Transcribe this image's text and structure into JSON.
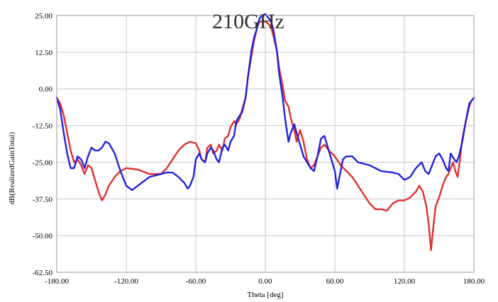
{
  "chart_data": {
    "type": "line",
    "title": "210GHz",
    "xlabel": "Theta [deg]",
    "ylabel": "dB(RealizedGainTotal)",
    "xlim": [
      -180,
      180
    ],
    "ylim": [
      -62.5,
      25
    ],
    "grid": true,
    "x_ticks": [
      "-180.00",
      "-120.00",
      "-60.00",
      "0.00",
      "60.00",
      "120.00",
      "180.00"
    ],
    "y_ticks": [
      "25.00",
      "12.50",
      "0.00",
      "-12.50",
      "-25.00",
      "-37.50",
      "-50.00",
      "-62.50"
    ],
    "colors": {
      "red_series": "#e03030",
      "blue_series": "#2222dd"
    },
    "series": [
      {
        "color": "#e03030",
        "x": [
          -180,
          -177,
          -174,
          -171,
          -168,
          -165,
          -162,
          -159,
          -156,
          -153,
          -150,
          -147,
          -144,
          -141,
          -138,
          -135,
          -130,
          -125,
          -120,
          -110,
          -100,
          -90,
          -85,
          -80,
          -75,
          -70,
          -65,
          -60,
          -57,
          -55,
          -52,
          -50,
          -47,
          -45,
          -42,
          -40,
          -37,
          -35,
          -32,
          -30,
          -27,
          -25,
          -22,
          -20,
          -17,
          -15,
          -12,
          -10,
          -7,
          -5,
          -3,
          0,
          3,
          5,
          7,
          10,
          12,
          15,
          17,
          20,
          22,
          25,
          27,
          30,
          33,
          36,
          39,
          42,
          45,
          48,
          51,
          55,
          60,
          65,
          70,
          75,
          80,
          85,
          90,
          95,
          100,
          105,
          110,
          115,
          120,
          125,
          130,
          133,
          136,
          139,
          141,
          143,
          145,
          147,
          150,
          153,
          156,
          158,
          160,
          162,
          164,
          166,
          168,
          170,
          173,
          176,
          178,
          180
        ],
        "y": [
          -3,
          -5,
          -9,
          -15,
          -21,
          -25,
          -24,
          -26,
          -29,
          -26,
          -27,
          -31,
          -35,
          -38,
          -36,
          -33,
          -30,
          -28,
          -27,
          -27.5,
          -29,
          -29,
          -27,
          -24,
          -21,
          -19,
          -18,
          -18.5,
          -21,
          -24,
          -25,
          -20,
          -19,
          -22,
          -21,
          -19,
          -21,
          -17,
          -16,
          -13,
          -11,
          -12,
          -10,
          -7,
          -3,
          4,
          11,
          16,
          21,
          23,
          23,
          23,
          22,
          21,
          18,
          13,
          7,
          1,
          -4,
          -6,
          -10,
          -14,
          -18,
          -14,
          -18,
          -24,
          -27,
          -26,
          -23,
          -20,
          -19,
          -21,
          -23,
          -26,
          -28,
          -30,
          -33,
          -36,
          -39,
          -41,
          -41,
          -41.5,
          -39,
          -38,
          -38,
          -37,
          -35,
          -33,
          -35,
          -40,
          -46,
          -55,
          -47,
          -40,
          -37,
          -33,
          -30,
          -29,
          -27,
          -25,
          -28,
          -30,
          -24,
          -17,
          -11,
          -6,
          -4,
          -3
        ]
      },
      {
        "color": "#2222dd",
        "x": [
          -180,
          -177,
          -174,
          -171,
          -168,
          -165,
          -162,
          -159,
          -156,
          -153,
          -150,
          -147,
          -144,
          -141,
          -138,
          -135,
          -130,
          -125,
          -120,
          -115,
          -110,
          -100,
          -90,
          -85,
          -80,
          -75,
          -70,
          -67,
          -65,
          -62,
          -60,
          -57,
          -55,
          -52,
          -50,
          -47,
          -45,
          -42,
          -40,
          -37,
          -35,
          -32,
          -30,
          -27,
          -25,
          -22,
          -20,
          -17,
          -15,
          -12,
          -10,
          -7,
          -5,
          -3,
          0,
          3,
          5,
          7,
          10,
          12,
          15,
          17,
          20,
          22,
          25,
          27,
          30,
          33,
          36,
          39,
          42,
          45,
          48,
          51,
          54,
          57,
          60,
          62,
          64,
          67,
          70,
          75,
          80,
          90,
          100,
          110,
          115,
          120,
          125,
          130,
          135,
          138,
          141,
          144,
          147,
          150,
          153,
          156,
          158,
          160,
          163,
          165,
          167,
          170,
          173,
          176,
          180
        ],
        "y": [
          -3,
          -7,
          -15,
          -22,
          -27,
          -27,
          -23,
          -24,
          -27,
          -23,
          -20,
          -21,
          -21,
          -20,
          -18,
          -18.5,
          -22,
          -28,
          -33,
          -34.5,
          -33,
          -30,
          -29,
          -28.5,
          -28.5,
          -30,
          -32,
          -34,
          -33,
          -30,
          -24,
          -22,
          -24,
          -25,
          -22,
          -20,
          -21,
          -24,
          -25,
          -20,
          -19,
          -21,
          -18,
          -16,
          -11,
          -9,
          -8,
          -3,
          4,
          13,
          17,
          21,
          24,
          25,
          25.5,
          24,
          23,
          20,
          13,
          5,
          -3,
          -10,
          -18,
          -15,
          -12,
          -15,
          -19,
          -23,
          -25,
          -27,
          -28,
          -23,
          -17,
          -16,
          -20,
          -24,
          -28,
          -34,
          -30,
          -24,
          -23,
          -23,
          -25,
          -26,
          -28,
          -28.5,
          -29,
          -31,
          -30,
          -27,
          -25,
          -28,
          -29,
          -26,
          -23,
          -22,
          -24,
          -27,
          -28,
          -22,
          -24,
          -25,
          -23,
          -18,
          -11,
          -5,
          -3
        ]
      }
    ]
  }
}
